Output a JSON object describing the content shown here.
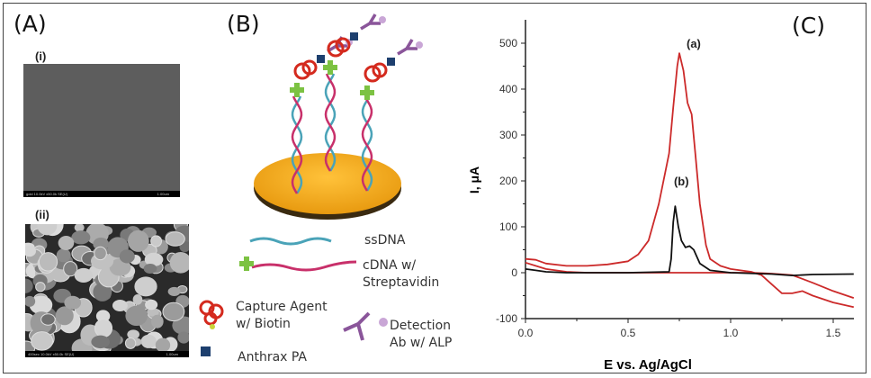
{
  "panels": {
    "A": {
      "label": "(A)",
      "sub_i": "(i)",
      "sub_ii": "(ii)",
      "sem_i_caption": "gold 10.0kV x50.0k SE(U)",
      "sem_i_scale": "1.00um",
      "sem_ii_caption": "400sec 10.0kV x50.0k SE(U)",
      "sem_ii_scale": "1.00um"
    },
    "B": {
      "label": "(B)",
      "legend": {
        "ssdna": "ssDNA",
        "cdna_1": "cDNA w/",
        "cdna_2": "Streptavidin",
        "capture_1": "Capture Agent",
        "capture_2": "w/ Biotin",
        "anthrax": "Anthrax PA",
        "detection_1": "Detection",
        "detection_2": "Ab w/ ALP"
      },
      "colors": {
        "gold": "#f2a81c",
        "ssdna": "#4aa3b8",
        "cdna": "#c8306a",
        "streptavidin": "#7cc242",
        "capture": "#d42a1e",
        "anthrax": "#1d3f6e",
        "detection": "#8a559a"
      }
    },
    "C": {
      "label": "(C)"
    }
  },
  "chart_data": {
    "type": "line",
    "title": "",
    "xlabel": "E vs. Ag/AgCl",
    "ylabel": "I, μA",
    "xlim": [
      0,
      1.6
    ],
    "ylim": [
      -100,
      550
    ],
    "xticks": [
      "0.0",
      "0.5",
      "1.0",
      "1.5"
    ],
    "xtick_values": [
      0,
      0.5,
      1.0,
      1.5
    ],
    "yticks": [
      "-100",
      "0",
      "100",
      "200",
      "300",
      "400",
      "500"
    ],
    "ytick_values": [
      -100,
      0,
      100,
      200,
      300,
      400,
      500
    ],
    "grid": false,
    "annotations": [
      {
        "text": "(a)",
        "x": 0.82,
        "y": 490
      },
      {
        "text": "(b)",
        "x": 0.76,
        "y": 190
      }
    ],
    "series": [
      {
        "name": "(a)",
        "color": "#cc2a2a",
        "x": [
          0,
          0.05,
          0.1,
          0.2,
          0.3,
          0.4,
          0.5,
          0.55,
          0.6,
          0.65,
          0.7,
          0.72,
          0.74,
          0.75,
          0.77,
          0.79,
          0.81,
          0.83,
          0.85,
          0.88,
          0.9,
          0.95,
          1.0,
          1.1,
          1.15,
          1.2,
          1.25,
          1.3,
          1.35,
          1.4,
          1.5,
          1.6
        ],
        "y": [
          30,
          28,
          20,
          15,
          15,
          18,
          25,
          40,
          70,
          150,
          260,
          360,
          450,
          478,
          440,
          370,
          345,
          250,
          150,
          60,
          30,
          15,
          8,
          2,
          -5,
          -25,
          -45,
          -45,
          -40,
          -50,
          -65,
          -75
        ]
      },
      {
        "name": "(a) return",
        "color": "#cc2a2a",
        "x": [
          1.6,
          1.5,
          1.4,
          1.3,
          1.2,
          1.1,
          1.0,
          0.8,
          0.5,
          0.3,
          0.2,
          0.1,
          0.05,
          0
        ],
        "y": [
          -55,
          -40,
          -22,
          -5,
          -2,
          0,
          0,
          0,
          0,
          0,
          2,
          8,
          15,
          22
        ]
      },
      {
        "name": "(b)",
        "color": "#111111",
        "x": [
          0,
          0.05,
          0.1,
          0.2,
          0.5,
          0.7,
          0.71,
          0.72,
          0.73,
          0.745,
          0.76,
          0.78,
          0.8,
          0.82,
          0.85,
          0.9,
          1.0,
          1.2,
          1.3,
          1.4,
          1.6
        ],
        "y": [
          8,
          5,
          2,
          0,
          0,
          2,
          30,
          110,
          145,
          100,
          70,
          55,
          58,
          50,
          20,
          5,
          0,
          -3,
          -6,
          -4,
          -3
        ]
      }
    ]
  }
}
